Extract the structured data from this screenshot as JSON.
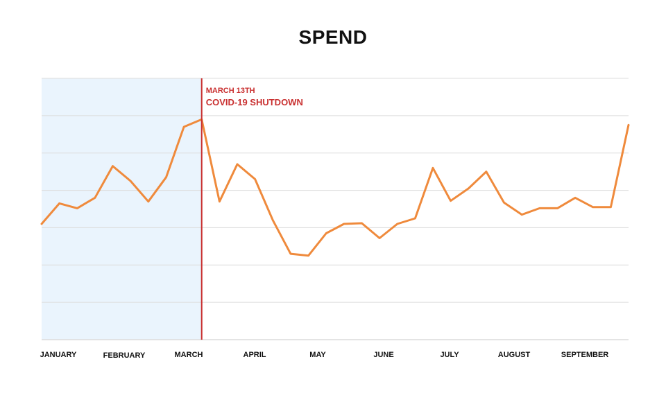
{
  "chart_data": {
    "type": "line",
    "title": "SPEND",
    "xlabel": "",
    "ylabel": "",
    "grid": true,
    "legend": "none",
    "ylim": [
      0,
      7
    ],
    "x_tick_labels": [
      "JANUARY",
      "FEBRUARY",
      "MARCH",
      "APRIL",
      "MAY",
      "JUNE",
      "JULY",
      "AUGUST",
      "SEPTEMBER"
    ],
    "annotation": {
      "date": "MARCH 13TH",
      "label": "COVID-19 SHUTDOWN",
      "index": 9
    },
    "shaded_before_index": 9,
    "values": [
      3.1,
      3.65,
      3.52,
      3.8,
      4.65,
      4.25,
      3.7,
      4.35,
      5.7,
      5.9,
      3.7,
      4.7,
      4.3,
      3.2,
      2.3,
      2.25,
      2.85,
      3.1,
      3.12,
      2.72,
      3.1,
      3.25,
      4.6,
      3.72,
      4.05,
      4.5,
      3.67,
      3.35,
      3.52,
      3.52,
      3.8,
      3.55,
      3.55,
      5.75
    ],
    "colors": {
      "line": "#ef8a3c",
      "shade": "#eaf4fd",
      "marker": "#c93030",
      "grid": "#dcdcdc"
    }
  }
}
